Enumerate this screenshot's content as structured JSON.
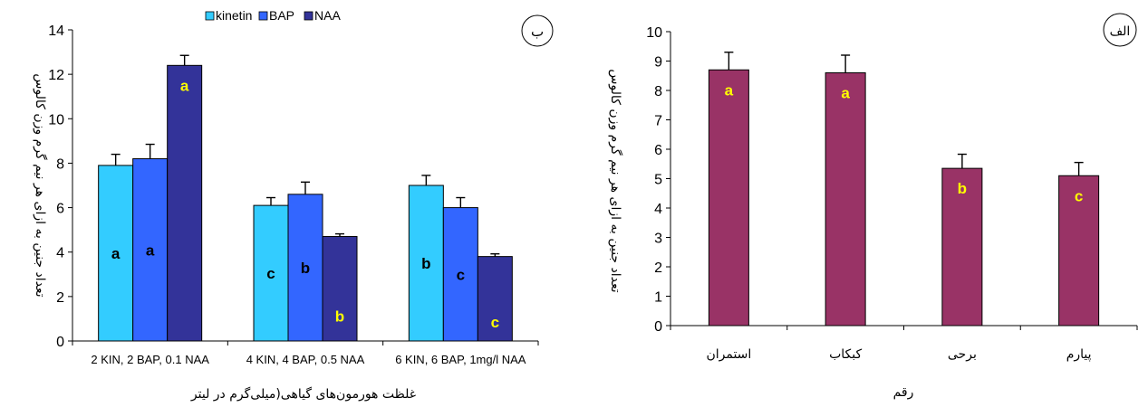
{
  "chart_data": [
    {
      "type": "bar",
      "panel_label": "ب",
      "categories": [
        "2 KIN, 2 BAP, 0.1 NAA",
        "4  KIN, 4 BAP, 0.5 NAA",
        "6  KIN, 6 BAP, 1mg/l NAA"
      ],
      "series": [
        {
          "name": "kinetin",
          "color": "#33CCFF",
          "values": [
            7.9,
            6.1,
            7.0
          ],
          "errors": [
            0.5,
            0.35,
            0.45
          ],
          "letters": [
            "a",
            "c",
            "b"
          ],
          "letter_color": "#000000"
        },
        {
          "name": "BAP",
          "color": "#3366FF",
          "values": [
            8.2,
            6.6,
            6.0
          ],
          "errors": [
            0.65,
            0.55,
            0.45
          ],
          "letters": [
            "a",
            "b",
            "c"
          ],
          "letter_color": "#000000"
        },
        {
          "name": "NAA",
          "color": "#333399",
          "values": [
            12.4,
            4.7,
            3.8
          ],
          "errors": [
            0.45,
            0.12,
            0.12
          ],
          "letters": [
            "a",
            "b",
            "c"
          ],
          "letter_color": "#FFFF00"
        }
      ],
      "xlabel": "غلظت هورمون‌های گیاهی(میلی‌گرم در لیتر",
      "ylabel": "تعداد جنین به ازای هر نیم گرم وزن کالوس",
      "ylim": [
        0,
        14
      ],
      "yticks": [
        0,
        2,
        4,
        6,
        8,
        10,
        12,
        14
      ],
      "legend_position": "top"
    },
    {
      "type": "bar",
      "panel_label": "الف",
      "categories": [
        "استمران",
        "کبکاب",
        "برحی",
        "پیارم"
      ],
      "series": [
        {
          "name": "",
          "color": "#993366",
          "values": [
            8.7,
            8.6,
            5.35,
            5.1
          ],
          "errors": [
            0.6,
            0.6,
            0.48,
            0.45
          ],
          "letters": [
            "a",
            "a",
            "b",
            "c"
          ],
          "letter_color": "#FFFF00"
        }
      ],
      "xlabel": "رقم",
      "ylabel": "تعداد جنین به ازای هر نیم گرم وزن کالوس",
      "ylim": [
        0,
        10
      ],
      "yticks": [
        0,
        1,
        2,
        3,
        4,
        5,
        6,
        7,
        8,
        9,
        10
      ]
    }
  ]
}
